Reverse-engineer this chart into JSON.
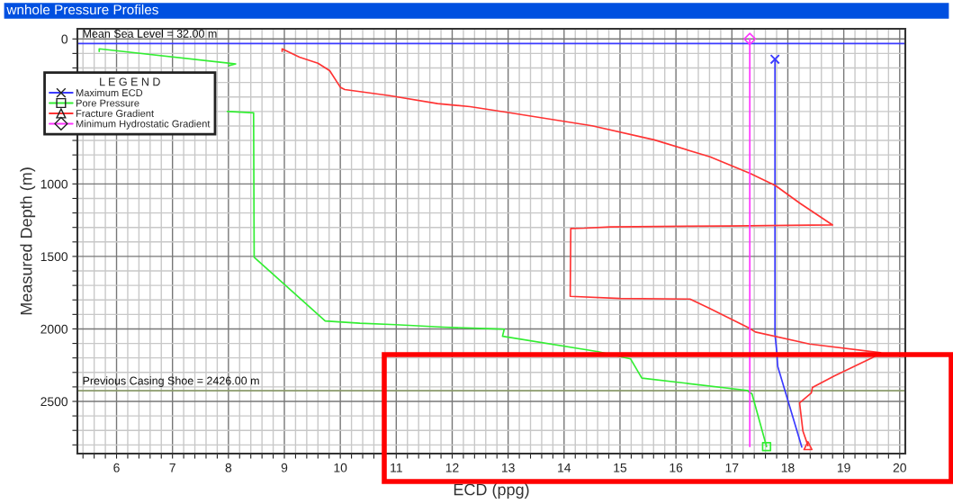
{
  "chart_data": {
    "type": "line",
    "title": "wnhole Pressure Profiles",
    "xlabel": "ECD (ppg)",
    "ylabel": "Measured Depth (m)",
    "legend_title": "L E G E N D",
    "xlim": [
      5.3,
      20.1
    ],
    "ylim": [
      2860,
      -70
    ],
    "xticks": [
      {
        "value": 5.4,
        "label": null
      },
      {
        "value": 5.6,
        "label": null
      },
      {
        "value": 5.8,
        "label": null
      },
      6,
      {
        "value": 6.2,
        "label": null
      },
      {
        "value": 6.4,
        "label": null
      },
      {
        "value": 6.6,
        "label": null
      },
      {
        "value": 6.8,
        "label": null
      },
      7,
      {
        "value": 7.2,
        "label": null
      },
      {
        "value": 7.4,
        "label": null
      },
      {
        "value": 7.6,
        "label": null
      },
      {
        "value": 7.8,
        "label": null
      },
      8,
      {
        "value": 8.2,
        "label": null
      },
      {
        "value": 8.4,
        "label": null
      },
      {
        "value": 8.6,
        "label": null
      },
      {
        "value": 8.8,
        "label": null
      },
      9,
      {
        "value": 9.2,
        "label": null
      },
      {
        "value": 9.4,
        "label": null
      },
      {
        "value": 9.6,
        "label": null
      },
      {
        "value": 9.8,
        "label": null
      },
      10,
      {
        "value": 10.2,
        "label": null
      },
      {
        "value": 10.4,
        "label": null
      },
      {
        "value": 10.6,
        "label": null
      },
      {
        "value": 10.8,
        "label": null
      },
      11,
      {
        "value": 11.2,
        "label": null
      },
      {
        "value": 11.4,
        "label": null
      },
      {
        "value": 11.6,
        "label": null
      },
      {
        "value": 11.8,
        "label": null
      },
      12,
      {
        "value": 12.2,
        "label": null
      },
      {
        "value": 12.4,
        "label": null
      },
      {
        "value": 12.6,
        "label": null
      },
      {
        "value": 12.8,
        "label": null
      },
      13,
      {
        "value": 13.2,
        "label": null
      },
      {
        "value": 13.4,
        "label": null
      },
      {
        "value": 13.6,
        "label": null
      },
      {
        "value": 13.8,
        "label": null
      },
      14,
      {
        "value": 14.2,
        "label": null
      },
      {
        "value": 14.4,
        "label": null
      },
      {
        "value": 14.6,
        "label": null
      },
      {
        "value": 14.8,
        "label": null
      },
      15,
      {
        "value": 15.2,
        "label": null
      },
      {
        "value": 15.4,
        "label": null
      },
      {
        "value": 15.6,
        "label": null
      },
      {
        "value": 15.8,
        "label": null
      },
      16,
      {
        "value": 16.2,
        "label": null
      },
      {
        "value": 16.4,
        "label": null
      },
      {
        "value": 16.6,
        "label": null
      },
      {
        "value": 16.8,
        "label": null
      },
      17,
      {
        "value": 17.2,
        "label": null
      },
      {
        "value": 17.4,
        "label": null
      },
      {
        "value": 17.6,
        "label": null
      },
      {
        "value": 17.8,
        "label": null
      },
      18,
      {
        "value": 18.2,
        "label": null
      },
      {
        "value": 18.4,
        "label": null
      },
      {
        "value": 18.6,
        "label": null
      },
      {
        "value": 18.8,
        "label": null
      },
      19,
      {
        "value": 19.2,
        "label": null
      },
      {
        "value": 19.4,
        "label": null
      },
      {
        "value": 19.6,
        "label": null
      },
      {
        "value": 19.8,
        "label": null
      },
      20
    ],
    "yticks": [
      0,
      {
        "value": 100,
        "label": null
      },
      {
        "value": 200,
        "label": null
      },
      {
        "value": 300,
        "label": null
      },
      {
        "value": 400,
        "label": null
      },
      {
        "value": 500,
        "label": null
      },
      {
        "value": 600,
        "label": null
      },
      {
        "value": 700,
        "label": null
      },
      {
        "value": 800,
        "label": null
      },
      {
        "value": 900,
        "label": null
      },
      1000,
      {
        "value": 1100,
        "label": null
      },
      {
        "value": 1200,
        "label": null
      },
      {
        "value": 1300,
        "label": null
      },
      {
        "value": 1400,
        "label": null
      },
      1500,
      {
        "value": 1600,
        "label": null
      },
      {
        "value": 1700,
        "label": null
      },
      {
        "value": 1800,
        "label": null
      },
      {
        "value": 1900,
        "label": null
      },
      2000,
      {
        "value": 2100,
        "label": null
      },
      {
        "value": 2200,
        "label": null
      },
      {
        "value": 2300,
        "label": null
      },
      {
        "value": 2400,
        "label": null
      },
      2500,
      {
        "value": 2600,
        "label": null
      },
      {
        "value": 2700,
        "label": null
      },
      {
        "value": 2800,
        "label": null
      }
    ],
    "grid": true,
    "legend": "top left",
    "ref_lines": [
      {
        "axis": "y",
        "value": 32,
        "label": "Mean Sea Level = 32.00 m",
        "color": "#3a3aff"
      },
      {
        "axis": "y",
        "value": 2426,
        "label": "Previous Casing Shoe = 2426.00 m",
        "color": "#8a9a6a"
      }
    ],
    "series": [
      {
        "name": "Maximum ECD",
        "color": "#3a3aff",
        "x": [
          17.77,
          17.77,
          17.77,
          17.8,
          17.82,
          18.25
        ],
        "values": [
          140,
          215,
          2035,
          2150,
          2260,
          2815
        ]
      },
      {
        "name": "Pore Pressure",
        "color": "#33ee33",
        "x": [
          5.69,
          5.69,
          8.13,
          8.01,
          null,
          7.98,
          8.45,
          8.46,
          9.73,
          9.97,
          10.35,
          10.99,
          11.85,
          12.75,
          12.93,
          12.9,
          14.61,
          15.19,
          15.39,
          17.27,
          17.36,
          17.62
        ],
        "values": [
          87,
          68,
          172,
          184,
          null,
          500,
          510,
          1506,
          1945,
          1951,
          1961,
          1971,
          1988,
          1999,
          2002,
          2051,
          2157,
          2207,
          2339,
          2424,
          2449,
          2812
        ]
      },
      {
        "name": "Fracture Gradient",
        "color": "#ff3333",
        "x": [
          8.96,
          8.96,
          9.27,
          9.6,
          9.81,
          10.0,
          10.08,
          10.88,
          11.74,
          12.32,
          13.0,
          14.5,
          15.61,
          16.61,
          17.32,
          17.78,
          18.22,
          18.8,
          16.94,
          14.83,
          14.36,
          14.12,
          14.11,
          15.0,
          16.25,
          16.58,
          17.3,
          17.42,
          18.39,
          19.66,
          19.5,
          18.83,
          18.44,
          18.42,
          18.21,
          18.27,
          18.36
        ],
        "values": [
          87,
          68,
          126,
          167,
          219,
          333,
          349,
          391,
          446,
          467,
          507,
          599,
          696,
          813,
          926,
          1012,
          1134,
          1283,
          1290,
          1296,
          1305,
          1307,
          1775,
          1790,
          1794,
          1854,
          1993,
          2021,
          2104,
          2164,
          2201,
          2324,
          2404,
          2442,
          2510,
          2705,
          2805
        ]
      },
      {
        "name": "Minimum Hydrostatic Gradient",
        "color": "#ff33ff",
        "x": [
          17.32,
          17.32
        ],
        "values": [
          0,
          2812
        ]
      },
      {
        "type": "scatter",
        "color": "#3a3aff",
        "marker": "cross",
        "x": [
          17.77
        ],
        "values": [
          140
        ]
      },
      {
        "type": "scatter",
        "color": "#33ee33",
        "marker": "square",
        "x": [
          17.62
        ],
        "values": [
          2812
        ]
      },
      {
        "type": "scatter",
        "color": "#ff3333",
        "marker": "triangle",
        "x": [
          18.36
        ],
        "values": [
          2805
        ]
      },
      {
        "type": "scatter",
        "color": "#ff33ff",
        "marker": "diamond",
        "x": [
          17.32
        ],
        "values": [
          0
        ]
      }
    ]
  }
}
